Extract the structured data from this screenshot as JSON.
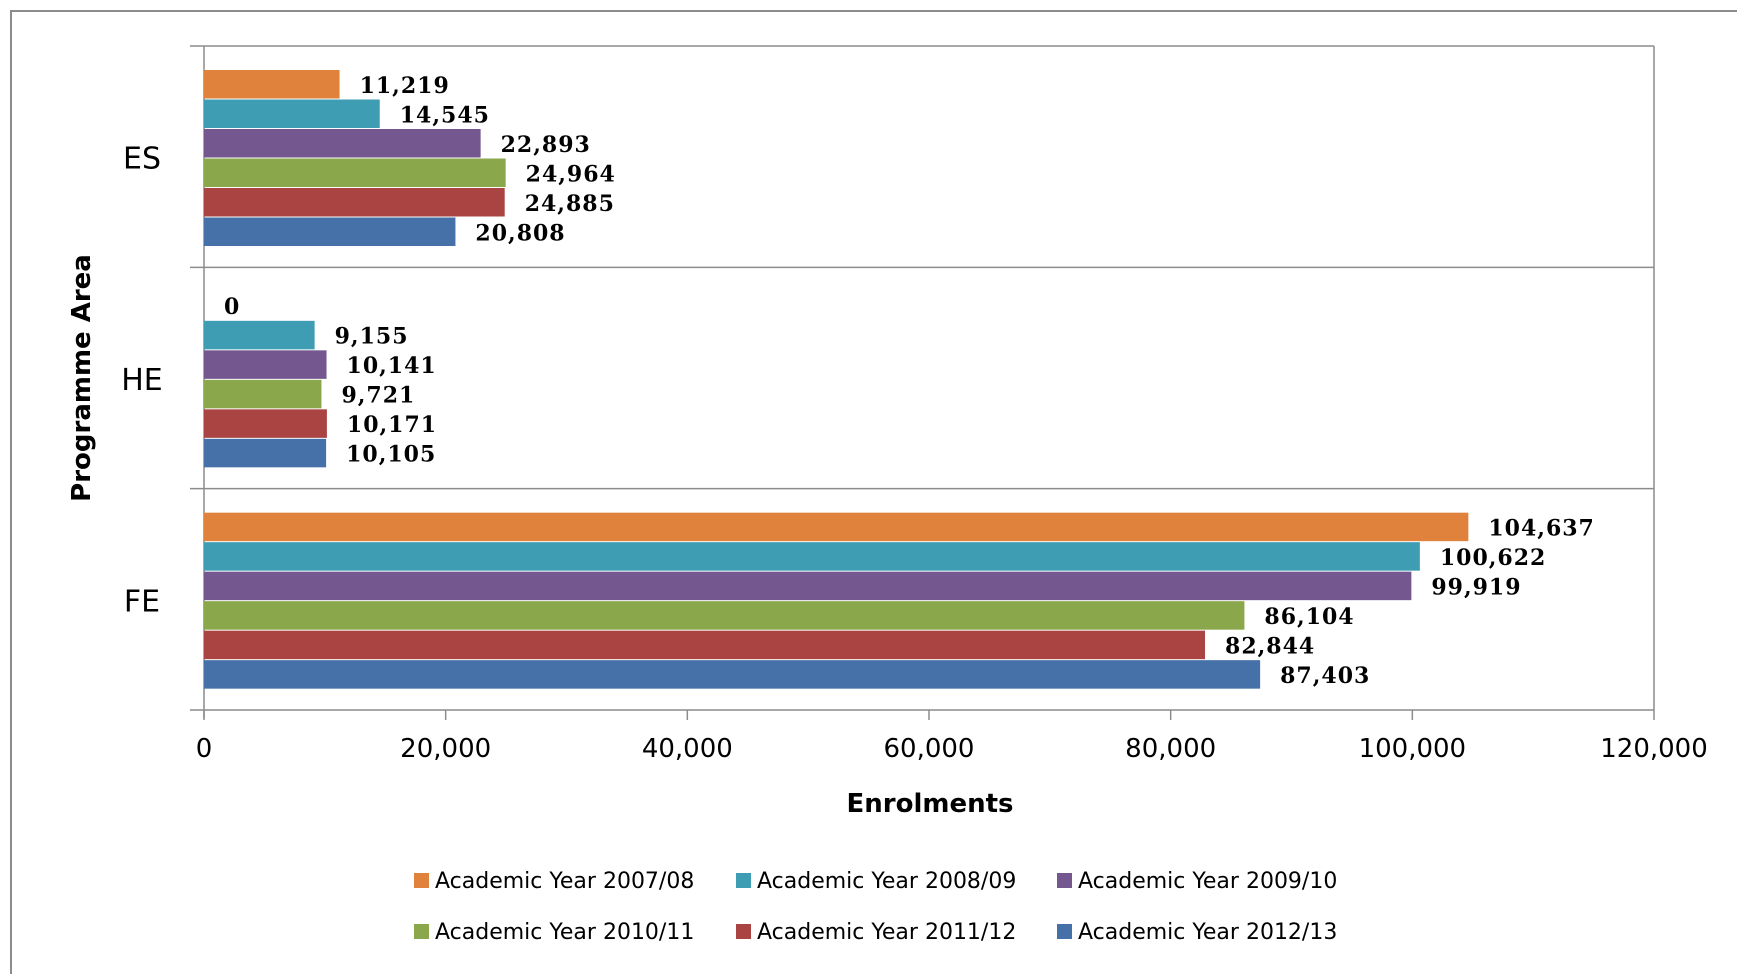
{
  "chart_data": {
    "type": "bar",
    "orientation": "horizontal",
    "categories": [
      "ES",
      "HE",
      "FE"
    ],
    "xlabel": "Enrolments",
    "ylabel": "Programme Area",
    "xlim": [
      0,
      120000
    ],
    "x_ticks": [
      0,
      20000,
      40000,
      60000,
      80000,
      100000,
      120000
    ],
    "x_tick_labels": [
      "0",
      "20,000",
      "40,000",
      "60,000",
      "80,000",
      "100,000",
      "120,000"
    ],
    "grid": "horizontal category separators",
    "legend_position": "bottom",
    "series": [
      {
        "name": "Academic Year 2007/08",
        "color": "#E0823C",
        "values": [
          11219,
          0,
          104637
        ],
        "labels": [
          "11,219",
          "0",
          "104,637"
        ]
      },
      {
        "name": "Academic Year 2008/09",
        "color": "#3E9CB3",
        "values": [
          14545,
          9155,
          100622
        ],
        "labels": [
          "14,545",
          "9,155",
          "100,622"
        ]
      },
      {
        "name": "Academic Year 2009/10",
        "color": "#73578E",
        "values": [
          22893,
          10141,
          99919
        ],
        "labels": [
          "22,893",
          "10,141",
          "99,919"
        ]
      },
      {
        "name": "Academic Year 2010/11",
        "color": "#8AA74B",
        "values": [
          24964,
          9721,
          86104
        ],
        "labels": [
          "24,964",
          "9,721",
          "86,104"
        ]
      },
      {
        "name": "Academic Year 2011/12",
        "color": "#A94443",
        "values": [
          24885,
          10171,
          82844
        ],
        "labels": [
          "24,885",
          "10,171",
          "82,844"
        ]
      },
      {
        "name": "Academic Year 2012/13",
        "color": "#4570A8",
        "values": [
          20808,
          10105,
          87403
        ],
        "labels": [
          "20,808",
          "10,105",
          "87,403"
        ]
      }
    ]
  }
}
